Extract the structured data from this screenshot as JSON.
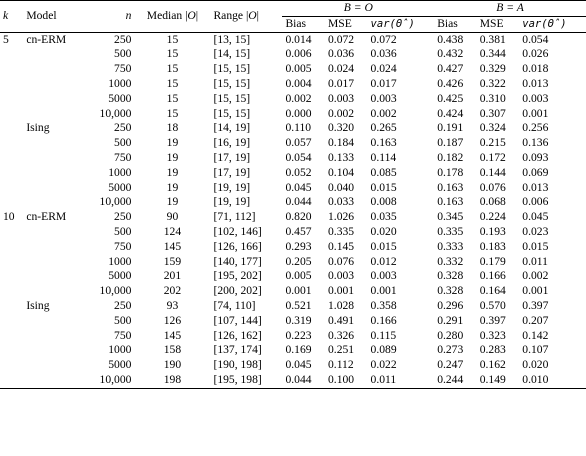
{
  "header": {
    "k": "k",
    "model": "Model",
    "n": "n",
    "median_prefix": "Median |",
    "median_var": "O",
    "median_suffix": "|",
    "range_prefix": "Range |",
    "range_var": "O",
    "range_suffix": "|",
    "group1": "B = O",
    "group2": "B = A",
    "bias": "Bias",
    "mse": "MSE",
    "var_label": "var(Θ̂)"
  },
  "rows": [
    {
      "k": "5",
      "model": "cn-ERM",
      "n": "250",
      "median": "15",
      "range": "[13, 15]",
      "b1": "0.014",
      "m1": "0.072",
      "v1": "0.072",
      "b2": "0.438",
      "m2": "0.381",
      "v2": "0.054"
    },
    {
      "k": "",
      "model": "",
      "n": "500",
      "median": "15",
      "range": "[14, 15]",
      "b1": "0.006",
      "m1": "0.036",
      "v1": "0.036",
      "b2": "0.432",
      "m2": "0.344",
      "v2": "0.026"
    },
    {
      "k": "",
      "model": "",
      "n": "750",
      "median": "15",
      "range": "[15, 15]",
      "b1": "0.005",
      "m1": "0.024",
      "v1": "0.024",
      "b2": "0.427",
      "m2": "0.329",
      "v2": "0.018"
    },
    {
      "k": "",
      "model": "",
      "n": "1000",
      "median": "15",
      "range": "[15, 15]",
      "b1": "0.004",
      "m1": "0.017",
      "v1": "0.017",
      "b2": "0.426",
      "m2": "0.322",
      "v2": "0.013"
    },
    {
      "k": "",
      "model": "",
      "n": "5000",
      "median": "15",
      "range": "[15, 15]",
      "b1": "0.002",
      "m1": "0.003",
      "v1": "0.003",
      "b2": "0.425",
      "m2": "0.310",
      "v2": "0.003"
    },
    {
      "k": "",
      "model": "",
      "n": "10,000",
      "median": "15",
      "range": "[15, 15]",
      "b1": "0.000",
      "m1": "0.002",
      "v1": "0.002",
      "b2": "0.424",
      "m2": "0.307",
      "v2": "0.001"
    },
    {
      "k": "",
      "model": "Ising",
      "n": "250",
      "median": "18",
      "range": "[14, 19]",
      "b1": "0.110",
      "m1": "0.320",
      "v1": "0.265",
      "b2": "0.191",
      "m2": "0.324",
      "v2": "0.256"
    },
    {
      "k": "",
      "model": "",
      "n": "500",
      "median": "19",
      "range": "[16, 19]",
      "b1": "0.057",
      "m1": "0.184",
      "v1": "0.163",
      "b2": "0.187",
      "m2": "0.215",
      "v2": "0.136"
    },
    {
      "k": "",
      "model": "",
      "n": "750",
      "median": "19",
      "range": "[17, 19]",
      "b1": "0.054",
      "m1": "0.133",
      "v1": "0.114",
      "b2": "0.182",
      "m2": "0.172",
      "v2": "0.093"
    },
    {
      "k": "",
      "model": "",
      "n": "1000",
      "median": "19",
      "range": "[17, 19]",
      "b1": "0.052",
      "m1": "0.104",
      "v1": "0.085",
      "b2": "0.178",
      "m2": "0.144",
      "v2": "0.069"
    },
    {
      "k": "",
      "model": "",
      "n": "5000",
      "median": "19",
      "range": "[19, 19]",
      "b1": "0.045",
      "m1": "0.040",
      "v1": "0.015",
      "b2": "0.163",
      "m2": "0.076",
      "v2": "0.013"
    },
    {
      "k": "",
      "model": "",
      "n": "10,000",
      "median": "19",
      "range": "[19, 19]",
      "b1": "0.044",
      "m1": "0.033",
      "v1": "0.008",
      "b2": "0.163",
      "m2": "0.068",
      "v2": "0.006"
    },
    {
      "k": "10",
      "model": "cn-ERM",
      "n": "250",
      "median": "90",
      "range": "[71, 112]",
      "b1": "0.820",
      "m1": "1.026",
      "v1": "0.035",
      "b2": "0.345",
      "m2": "0.224",
      "v2": "0.045"
    },
    {
      "k": "",
      "model": "",
      "n": "500",
      "median": "124",
      "range": "[102, 146]",
      "b1": "0.457",
      "m1": "0.335",
      "v1": "0.020",
      "b2": "0.335",
      "m2": "0.193",
      "v2": "0.023"
    },
    {
      "k": "",
      "model": "",
      "n": "750",
      "median": "145",
      "range": "[126, 166]",
      "b1": "0.293",
      "m1": "0.145",
      "v1": "0.015",
      "b2": "0.333",
      "m2": "0.183",
      "v2": "0.015"
    },
    {
      "k": "",
      "model": "",
      "n": "1000",
      "median": "159",
      "range": "[140, 177]",
      "b1": "0.205",
      "m1": "0.076",
      "v1": "0.012",
      "b2": "0.332",
      "m2": "0.179",
      "v2": "0.011"
    },
    {
      "k": "",
      "model": "",
      "n": "5000",
      "median": "201",
      "range": "[195, 202]",
      "b1": "0.005",
      "m1": "0.003",
      "v1": "0.003",
      "b2": "0.328",
      "m2": "0.166",
      "v2": "0.002"
    },
    {
      "k": "",
      "model": "",
      "n": "10,000",
      "median": "202",
      "range": "[200, 202]",
      "b1": "0.001",
      "m1": "0.001",
      "v1": "0.001",
      "b2": "0.328",
      "m2": "0.164",
      "v2": "0.001"
    },
    {
      "k": "",
      "model": "Ising",
      "n": "250",
      "median": "93",
      "range": "[74, 110]",
      "b1": "0.521",
      "m1": "1.028",
      "v1": "0.358",
      "b2": "0.296",
      "m2": "0.570",
      "v2": "0.397"
    },
    {
      "k": "",
      "model": "",
      "n": "500",
      "median": "126",
      "range": "[107, 144]",
      "b1": "0.319",
      "m1": "0.491",
      "v1": "0.166",
      "b2": "0.291",
      "m2": "0.397",
      "v2": "0.207"
    },
    {
      "k": "",
      "model": "",
      "n": "750",
      "median": "145",
      "range": "[126, 162]",
      "b1": "0.223",
      "m1": "0.326",
      "v1": "0.115",
      "b2": "0.280",
      "m2": "0.323",
      "v2": "0.142"
    },
    {
      "k": "",
      "model": "",
      "n": "1000",
      "median": "158",
      "range": "[137, 174]",
      "b1": "0.169",
      "m1": "0.251",
      "v1": "0.089",
      "b2": "0.273",
      "m2": "0.283",
      "v2": "0.107"
    },
    {
      "k": "",
      "model": "",
      "n": "5000",
      "median": "190",
      "range": "[190, 198]",
      "b1": "0.045",
      "m1": "0.112",
      "v1": "0.022",
      "b2": "0.247",
      "m2": "0.162",
      "v2": "0.020"
    },
    {
      "k": "",
      "model": "",
      "n": "10,000",
      "median": "198",
      "range": "[195, 198]",
      "b1": "0.044",
      "m1": "0.100",
      "v1": "0.011",
      "b2": "0.244",
      "m2": "0.149",
      "v2": "0.010"
    }
  ]
}
